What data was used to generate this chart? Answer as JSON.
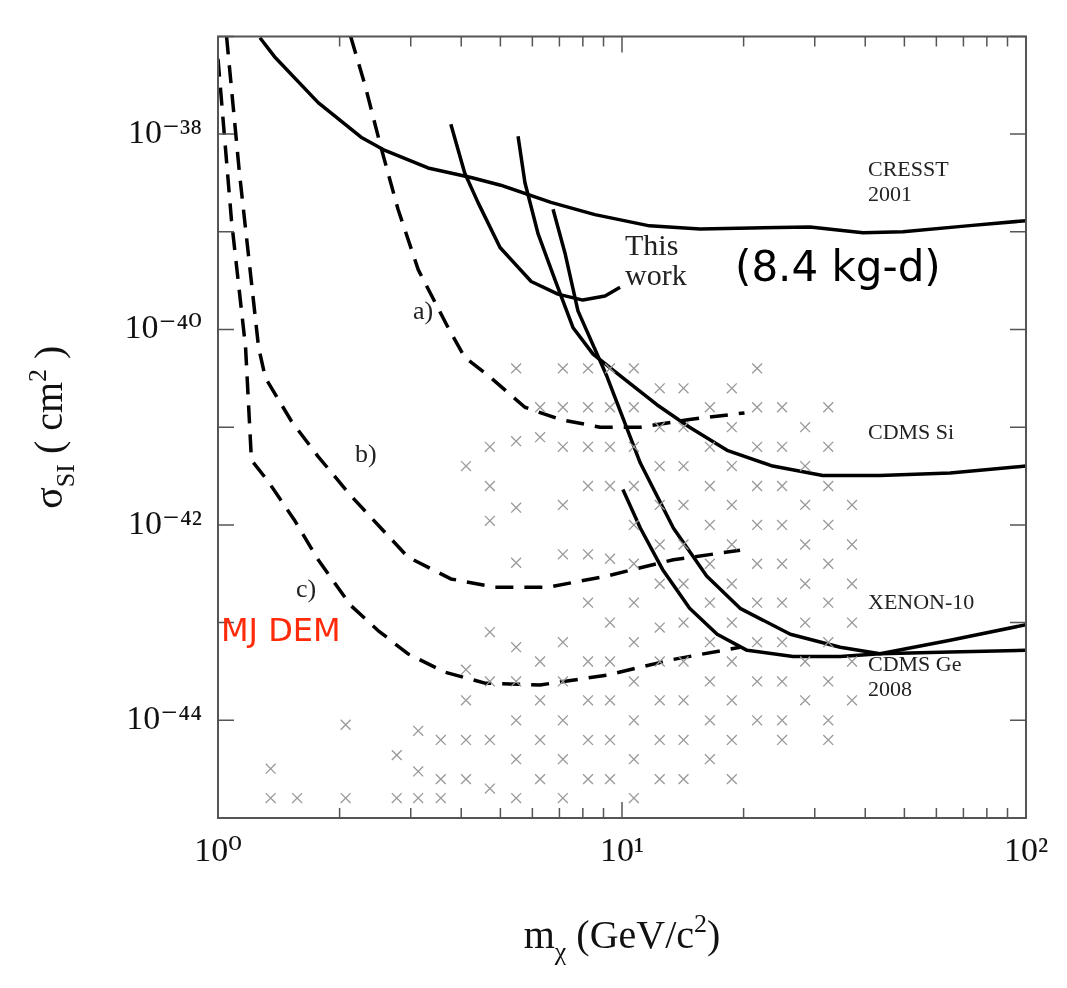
{
  "chart_data": {
    "type": "line",
    "xlabel": "m$_{χ}$ (GeV/c$^{2}$)",
    "ylabel": "σ$_{SI}$ ( cm$^{2}$ )",
    "log": "xy",
    "grid": false,
    "legend": false,
    "xlim": [
      1,
      100
    ],
    "ylim": [
      1e-45,
      1e-37
    ],
    "xticks": [
      {
        "value": 1,
        "label": "10⁰"
      },
      {
        "value": 2,
        "label": null
      },
      {
        "value": 3,
        "label": null
      },
      {
        "value": 4,
        "label": null
      },
      {
        "value": 5,
        "label": null
      },
      {
        "value": 6,
        "label": null
      },
      {
        "value": 7,
        "label": null
      },
      {
        "value": 8,
        "label": null
      },
      {
        "value": 9,
        "label": null
      },
      {
        "value": 10,
        "label": "10¹"
      },
      {
        "value": 20,
        "label": null
      },
      {
        "value": 30,
        "label": null
      },
      {
        "value": 40,
        "label": null
      },
      {
        "value": 50,
        "label": null
      },
      {
        "value": 60,
        "label": null
      },
      {
        "value": 70,
        "label": null
      },
      {
        "value": 80,
        "label": null
      },
      {
        "value": 90,
        "label": null
      },
      {
        "value": 100,
        "label": "10²"
      }
    ],
    "yticks": [
      {
        "value": 1e-45,
        "label": null
      },
      {
        "value": 1e-44,
        "label": "10⁻⁴⁴"
      },
      {
        "value": 1e-43,
        "label": null
      },
      {
        "value": 1e-42,
        "label": "10⁻⁴²"
      },
      {
        "value": 1e-41,
        "label": null
      },
      {
        "value": 1e-40,
        "label": "10⁻⁴⁰"
      },
      {
        "value": 1e-39,
        "label": null
      },
      {
        "value": 1e-38,
        "label": "10⁻³⁸"
      },
      {
        "value": 1e-37,
        "label": null
      }
    ],
    "series": [
      {
        "type": "scatter",
        "color": "#999999",
        "marker": "cross",
        "x": [
          1.35,
          1.35,
          1.57,
          2.07,
          2.07,
          2.77,
          2.77,
          3.13,
          3.13,
          3.13,
          3.56,
          3.56,
          3.56,
          4.11,
          4.11,
          4.11,
          4.11,
          4.11,
          4.71,
          4.71,
          4.71,
          4.71,
          4.71,
          4.71,
          4.71,
          5.47,
          5.47,
          5.47,
          5.47,
          5.47,
          5.47,
          5.47,
          5.47,
          5.47,
          6.27,
          6.27,
          6.27,
          6.27,
          6.27,
          6.27,
          7.14,
          7.14,
          7.14,
          7.14,
          7.14,
          7.14,
          7.14,
          7.14,
          7.14,
          7.14,
          8.24,
          8.24,
          8.24,
          8.24,
          8.24,
          8.24,
          8.24,
          8.24,
          8.24,
          8.24,
          9.34,
          9.34,
          9.34,
          9.34,
          9.34,
          9.34,
          9.34,
          9.34,
          9.34,
          9.34,
          10.7,
          10.7,
          10.7,
          10.7,
          10.7,
          10.7,
          10.7,
          10.7,
          10.7,
          10.7,
          10.7,
          10.7,
          12.4,
          12.4,
          12.4,
          12.4,
          12.4,
          12.4,
          12.4,
          12.4,
          12.4,
          12.4,
          12.4,
          14.2,
          14.2,
          14.2,
          14.2,
          14.2,
          14.2,
          14.2,
          14.2,
          14.2,
          14.2,
          14.2,
          16.5,
          16.5,
          16.5,
          16.5,
          16.5,
          16.5,
          16.5,
          16.5,
          16.5,
          16.5,
          18.7,
          18.7,
          18.7,
          18.7,
          18.7,
          18.7,
          18.7,
          18.7,
          18.7,
          18.7,
          18.7,
          21.6,
          21.6,
          21.6,
          21.6,
          21.6,
          21.6,
          21.6,
          21.6,
          21.6,
          21.6,
          24.9,
          24.9,
          24.9,
          24.9,
          24.9,
          24.9,
          24.9,
          24.9,
          24.9,
          24.9,
          28.4,
          28.4,
          28.4,
          28.4,
          28.4,
          28.4,
          28.4,
          28.4,
          32.4,
          32.4,
          32.4,
          32.4,
          32.4,
          32.4,
          32.4,
          32.4,
          32.4,
          32.4,
          37.1,
          37.1,
          37.1,
          37.1,
          37.1,
          37.1
        ],
        "values": [
          3.2e-45,
          1.6e-45,
          1.6e-45,
          9e-45,
          1.6e-45,
          4.4e-45,
          1.6e-45,
          7.8e-45,
          3e-45,
          1.6e-45,
          6.3e-45,
          2.5e-45,
          1.6e-45,
          4e-42,
          3.3e-44,
          1.6e-44,
          6.3e-45,
          2.5e-45,
          6.3e-42,
          2.5e-42,
          1.1e-42,
          8e-44,
          2.5e-44,
          6.3e-45,
          2e-45,
          4e-41,
          7.2e-42,
          1.5e-42,
          4.1e-43,
          5.6e-44,
          2.5e-44,
          1e-44,
          4e-45,
          1.6e-45,
          1.6e-41,
          7.9e-42,
          4e-44,
          1.6e-44,
          6.3e-45,
          2.5e-45,
          4e-41,
          1.6e-41,
          6.3e-42,
          1.6e-42,
          5e-43,
          6.3e-44,
          2.5e-44,
          1e-44,
          4e-45,
          1.6e-45,
          4e-41,
          1.6e-41,
          6.3e-42,
          2.5e-42,
          5e-43,
          1.6e-43,
          4e-44,
          1.6e-44,
          6.3e-45,
          2.5e-45,
          4e-41,
          1.6e-41,
          6.3e-42,
          2.5e-42,
          4.5e-43,
          1e-43,
          4e-44,
          1.6e-44,
          6.3e-45,
          2.5e-45,
          4e-41,
          1.6e-41,
          6.3e-42,
          2.5e-42,
          1e-42,
          4e-43,
          1.6e-43,
          6.3e-44,
          2.5e-44,
          1e-44,
          4e-45,
          1.6e-45,
          2.5e-41,
          1e-41,
          4e-42,
          1.6e-42,
          6.3e-43,
          2.5e-43,
          8.9e-44,
          4e-44,
          1.6e-44,
          6.3e-45,
          2.5e-45,
          2.5e-41,
          1e-41,
          4e-42,
          1.6e-42,
          6.3e-43,
          2.5e-43,
          1e-43,
          4e-44,
          1.6e-44,
          6.3e-45,
          2.5e-45,
          1.6e-41,
          6.3e-42,
          2.5e-42,
          1e-42,
          4e-43,
          1.6e-43,
          6.3e-44,
          2.5e-44,
          1e-44,
          4e-45,
          2.5e-41,
          1e-41,
          4e-42,
          1.6e-42,
          6.3e-43,
          2.5e-43,
          1e-43,
          4e-44,
          1.6e-44,
          6.3e-45,
          2.5e-45,
          4e-41,
          1.6e-41,
          6.3e-42,
          2.5e-42,
          1e-42,
          4e-43,
          1.6e-43,
          6.3e-44,
          2.5e-44,
          1e-44,
          1.6e-41,
          6.3e-42,
          2.5e-42,
          1e-42,
          4e-43,
          1.6e-43,
          6.3e-44,
          2.5e-44,
          1e-44,
          6.3e-45,
          1e-41,
          4e-42,
          1.6e-42,
          6.3e-43,
          2.5e-43,
          1e-43,
          4e-44,
          1.6e-44,
          1.6e-41,
          6.3e-42,
          2.5e-42,
          1e-42,
          4e-43,
          1.6e-43,
          6.3e-44,
          2.5e-44,
          1e-44,
          6.3e-45,
          1.6e-42,
          6.3e-43,
          2.5e-43,
          1e-43,
          4e-44,
          1.6e-44
        ]
      },
      {
        "type": "line",
        "color": "#000000",
        "line_style": "solid",
        "marker": "none",
        "x": [
          1.27,
          1.38,
          1.77,
          2.26,
          2.59,
          3.31,
          4.23,
          5.01,
          6.67,
          8.57,
          11.7,
          15.6,
          29.2,
          39.5,
          49.6,
          71.4,
          100
        ],
        "values": [
          9.7e-38,
          6.2e-38,
          2.1e-38,
          9.3e-39,
          6.8e-39,
          4.5e-39,
          3.6e-39,
          3e-39,
          2e-39,
          1.5e-39,
          1.15e-39,
          1.07e-39,
          1.12e-39,
          9.8e-40,
          1e-39,
          1.15e-39,
          1.3e-39
        ]
      },
      {
        "type": "line",
        "color": "#000000",
        "line_style": "solid",
        "marker": "none",
        "x": [
          3.77,
          4.08,
          4.4,
          4.99,
          5.96,
          6.94,
          8.0,
          9.08,
          9.89
        ],
        "values": [
          1.26e-38,
          4e-39,
          2e-39,
          6.9e-40,
          3.1e-40,
          2.3e-40,
          2e-40,
          2.2e-40,
          2.7e-40
        ]
      },
      {
        "type": "line",
        "color": "#000000",
        "line_style": "solid",
        "marker": "none",
        "x": [
          5.53,
          5.75,
          6.2,
          6.83,
          7.56,
          8.48,
          10.05,
          12.2,
          14.7,
          18.2,
          23.6,
          31.4,
          43.5,
          64.9,
          100
        ],
        "values": [
          9.5e-39,
          3.2e-39,
          9.5e-40,
          3.2e-40,
          1.05e-40,
          5.6e-41,
          3.2e-41,
          1.7e-41,
          1e-41,
          5.8e-42,
          4e-42,
          3.2e-42,
          3.2e-42,
          3.4e-42,
          4e-42
        ]
      },
      {
        "type": "line",
        "color": "#000000",
        "line_style": "solid",
        "marker": "none",
        "x": [
          6.75,
          7.23,
          7.78,
          9.18,
          11.1,
          13.4,
          16.2,
          19.6,
          26.1,
          34.7,
          43.5,
          64.9,
          100
        ],
        "values": [
          1.7e-39,
          6e-40,
          1.55e-40,
          3.3e-41,
          4.3e-42,
          9.3e-43,
          3e-43,
          1.4e-43,
          7.6e-44,
          5.6e-44,
          4.8e-44,
          6.6e-44,
          9.5e-44
        ]
      },
      {
        "type": "line",
        "color": "#000000",
        "line_style": "solid",
        "marker": "none",
        "x": [
          10.05,
          11.1,
          12.6,
          14.7,
          17.2,
          20.4,
          26.5,
          34.7,
          43.5,
          64.9,
          100
        ],
        "values": [
          2.3e-42,
          9.3e-43,
          3.5e-43,
          1.4e-43,
          7.6e-44,
          5.2e-44,
          4.5e-44,
          4.5e-44,
          4.8e-44,
          5e-44,
          5.2e-44
        ]
      },
      {
        "type": "line",
        "color": "#000000",
        "line_style": "dashed",
        "marker": "none",
        "x": [
          2.13,
          2.31,
          2.53,
          2.79,
          3.13,
          3.71,
          4.08,
          4.74,
          5.75,
          7.03,
          8.83,
          11.1,
          14.7,
          20.1
        ],
        "values": [
          1e-37,
          3.2e-38,
          7.4e-39,
          1.7e-39,
          4.1e-40,
          1.05e-40,
          5.2e-41,
          3.2e-41,
          1.6e-41,
          1.2e-41,
          1e-41,
          1e-41,
          1.2e-41,
          1.4e-41
        ]
      },
      {
        "type": "line",
        "color": "#000000",
        "line_style": "dashed",
        "marker": "none",
        "x": [
          1.05,
          1.13,
          1.26,
          1.31,
          1.52,
          1.77,
          2.13,
          2.53,
          2.95,
          3.77,
          4.85,
          6.56,
          9.18,
          13.4,
          19.6
        ],
        "values": [
          1e-37,
          4e-39,
          6.6e-41,
          3.2e-41,
          1.15e-41,
          5e-42,
          2e-42,
          9.3e-43,
          4.7e-43,
          2.8e-43,
          2.3e-43,
          2.3e-43,
          3e-43,
          4.4e-43,
          5.5e-43
        ]
      },
      {
        "type": "line",
        "color": "#000000",
        "line_style": "dashed",
        "marker": "none",
        "x": [
          1.0,
          1.08,
          1.17,
          1.21,
          1.33,
          1.55,
          1.77,
          2.13,
          2.49,
          2.95,
          3.65,
          4.58,
          6.27,
          9.18,
          13.4,
          19.6
        ],
        "values": [
          5.9e-38,
          1.3e-39,
          6.6e-41,
          4.6e-42,
          2.8e-42,
          1.1e-42,
          4.4e-43,
          1.5e-43,
          8.3e-44,
          4.8e-44,
          3.1e-44,
          2.4e-44,
          2.3e-44,
          2.9e-44,
          4.2e-44,
          5.6e-44
        ]
      }
    ],
    "annotations": [
      "CRESST\n2001",
      "This\nwork",
      "(8.4 kg-d)",
      "CDMS Si",
      "XENON-10",
      "CDMS Ge\n2008",
      "a)",
      "b)",
      "c)",
      "MJ DEM"
    ]
  }
}
